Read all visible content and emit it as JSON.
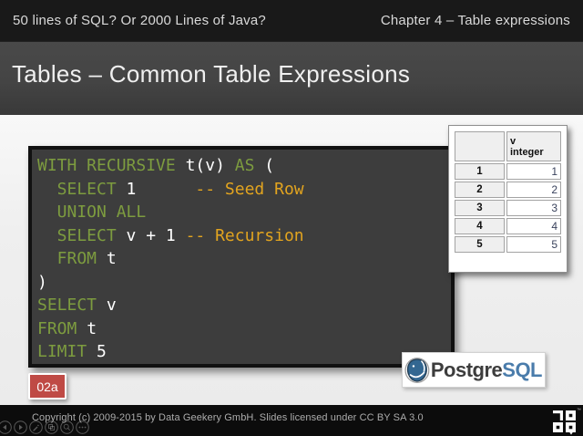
{
  "header": {
    "left_title": "50 lines of SQL? Or 2000 Lines of Java?",
    "right_title": "Chapter 4 – Table expressions"
  },
  "slide": {
    "title": "Tables – Common Table Expressions",
    "badge_label": "02a",
    "code": {
      "language": "sql",
      "lines": [
        [
          {
            "c": "kw",
            "t": "WITH RECURSIVE "
          },
          {
            "c": "pl",
            "t": "t(v) "
          },
          {
            "c": "kw",
            "t": "AS "
          },
          {
            "c": "pl",
            "t": "("
          }
        ],
        [
          {
            "c": "kw",
            "t": "  SELECT "
          },
          {
            "c": "pl",
            "t": "1      "
          },
          {
            "c": "cm",
            "t": "-- Seed Row"
          }
        ],
        [
          {
            "c": "kw",
            "t": "  UNION ALL"
          }
        ],
        [
          {
            "c": "kw",
            "t": "  SELECT "
          },
          {
            "c": "pl",
            "t": "v + 1 "
          },
          {
            "c": "cm",
            "t": "-- Recursion"
          }
        ],
        [
          {
            "c": "kw",
            "t": "  FROM "
          },
          {
            "c": "pl",
            "t": "t"
          }
        ],
        [
          {
            "c": "pl",
            "t": ")"
          }
        ],
        [
          {
            "c": "kw",
            "t": "SELECT "
          },
          {
            "c": "pl",
            "t": "v"
          }
        ],
        [
          {
            "c": "kw",
            "t": "FROM "
          },
          {
            "c": "pl",
            "t": "t"
          }
        ],
        [
          {
            "c": "kw",
            "t": "LIMIT "
          },
          {
            "c": "pl",
            "t": "5"
          }
        ]
      ]
    },
    "result_table": {
      "header": {
        "row_col": "",
        "column_name": "v",
        "column_type": "integer"
      },
      "rows": [
        {
          "num": "1",
          "value": "1"
        },
        {
          "num": "2",
          "value": "2"
        },
        {
          "num": "3",
          "value": "3"
        },
        {
          "num": "4",
          "value": "4"
        },
        {
          "num": "5",
          "value": "5"
        }
      ]
    },
    "postgresql_logo": {
      "prefix": "Postgre",
      "suffix": "SQL"
    }
  },
  "footer": {
    "copyright": "Copyright (c) 2009-2015 by Data Geekery GmbH. Slides licensed under CC BY SA 3.0",
    "player_icons": [
      "previous-icon",
      "next-icon",
      "edit-icon",
      "copy-icon",
      "zoom-icon",
      "more-icon"
    ],
    "brand_trademark": "™"
  },
  "colors": {
    "top_bar_bg": "#191919",
    "title_bar_bg": "#434343",
    "content_bg": "#f1f1f1",
    "code_bg": "#3d3d3d",
    "keyword_green": "#7d9c3f",
    "plain_white": "#ffffff",
    "comment_orange": "#e2a41f",
    "badge_red": "#bf4a45",
    "postgres_blue": "#4a7cab",
    "value_text_blue": "#39425c",
    "footer_bg": "#0c0c0c"
  }
}
